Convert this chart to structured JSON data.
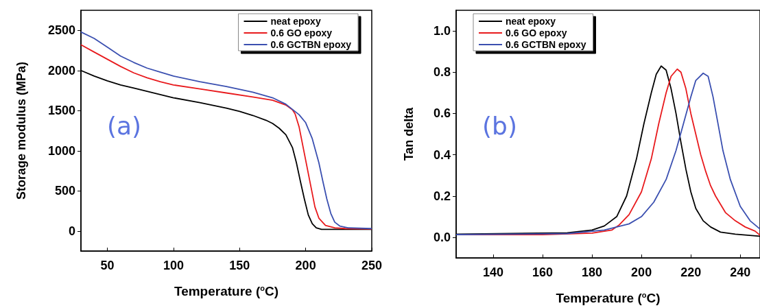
{
  "chart_data": [
    {
      "type": "line",
      "xlabel": "Temperature ($^{o}$C)",
      "ylabel": "Storage modulus (MPa)",
      "annotations": [
        "(a)"
      ],
      "xlim": [
        30,
        250
      ],
      "ylim": [
        -250,
        2750
      ],
      "xticks": [
        50,
        100,
        150,
        200,
        250
      ],
      "yticks": [
        0,
        500,
        1000,
        1500,
        2000,
        2500
      ],
      "grid": false,
      "legend": "top right",
      "marker": "none",
      "line_style": "solid",
      "series": [
        {
          "name": "neat epoxy",
          "color": "#000000",
          "x": [
            30,
            40,
            50,
            60,
            70,
            80,
            100,
            120,
            140,
            150,
            160,
            170,
            175,
            180,
            185,
            190,
            193,
            196,
            199,
            202,
            205,
            208,
            212,
            220,
            250
          ],
          "values": [
            2000,
            1930,
            1870,
            1820,
            1780,
            1740,
            1660,
            1600,
            1530,
            1490,
            1440,
            1380,
            1340,
            1280,
            1200,
            1040,
            850,
            620,
            400,
            200,
            90,
            40,
            20,
            20,
            20
          ]
        },
        {
          "name": "0.6 GO epoxy",
          "color": "#e8191c",
          "x": [
            30,
            40,
            50,
            60,
            70,
            80,
            90,
            100,
            120,
            140,
            160,
            175,
            185,
            190,
            192,
            195,
            198,
            201,
            204,
            207,
            210,
            215,
            222,
            230,
            250
          ],
          "values": [
            2320,
            2230,
            2140,
            2050,
            1970,
            1910,
            1860,
            1820,
            1770,
            1720,
            1670,
            1630,
            1570,
            1510,
            1460,
            1300,
            1050,
            800,
            550,
            300,
            160,
            70,
            40,
            30,
            25
          ]
        },
        {
          "name": "0.6 GCTBN epoxy",
          "color": "#3a4fb0",
          "x": [
            30,
            40,
            50,
            60,
            70,
            80,
            90,
            100,
            120,
            140,
            160,
            175,
            185,
            195,
            200,
            205,
            210,
            213,
            216,
            219,
            222,
            226,
            232,
            250
          ],
          "values": [
            2480,
            2400,
            2290,
            2180,
            2100,
            2030,
            1980,
            1930,
            1860,
            1800,
            1730,
            1660,
            1580,
            1450,
            1350,
            1150,
            850,
            620,
            400,
            220,
            110,
            60,
            40,
            30
          ]
        }
      ]
    },
    {
      "type": "line",
      "xlabel": "Temperature ($^{o}$C)",
      "ylabel": "Tan delta",
      "annotations": [
        "(b)"
      ],
      "xlim": [
        125,
        248
      ],
      "ylim": [
        -0.1,
        1.1
      ],
      "xticks": [
        140,
        160,
        180,
        200,
        220,
        240
      ],
      "yticks": [
        {
          "value": 0,
          "label": "0.0"
        },
        0.2,
        0.4,
        0.6,
        0.8,
        {
          "value": 1,
          "label": "1.0"
        }
      ],
      "grid": false,
      "legend": "top left",
      "marker": "none",
      "line_style": "solid",
      "series": [
        {
          "name": "neat epoxy",
          "color": "#000000",
          "x": [
            125,
            170,
            180,
            185,
            190,
            194,
            198,
            201,
            204,
            206,
            208,
            210,
            212,
            214,
            216,
            218,
            220,
            222,
            225,
            228,
            232,
            238,
            248
          ],
          "values": [
            0.015,
            0.022,
            0.035,
            0.055,
            0.1,
            0.2,
            0.38,
            0.55,
            0.7,
            0.79,
            0.83,
            0.81,
            0.72,
            0.6,
            0.46,
            0.33,
            0.22,
            0.14,
            0.08,
            0.05,
            0.025,
            0.015,
            0.005
          ]
        },
        {
          "name": "0.6 GO epoxy",
          "color": "#e8191c",
          "x": [
            125,
            160,
            180,
            188,
            191,
            195,
            200,
            204,
            207,
            210,
            212,
            214.5,
            216,
            218,
            220,
            222,
            224,
            226,
            228,
            230,
            234,
            238,
            242,
            246,
            248
          ],
          "values": [
            0.013,
            0.013,
            0.02,
            0.035,
            0.06,
            0.11,
            0.22,
            0.38,
            0.55,
            0.7,
            0.78,
            0.815,
            0.8,
            0.72,
            0.6,
            0.5,
            0.4,
            0.32,
            0.25,
            0.2,
            0.12,
            0.08,
            0.05,
            0.03,
            0.01
          ]
        },
        {
          "name": "0.6 GCTBN epoxy",
          "color": "#3a4fb0",
          "x": [
            125,
            170,
            185,
            195,
            200,
            205,
            210,
            214,
            217,
            220,
            222,
            225,
            227,
            229,
            231,
            233,
            236,
            240,
            244,
            248
          ],
          "values": [
            0.013,
            0.018,
            0.035,
            0.065,
            0.1,
            0.17,
            0.28,
            0.42,
            0.55,
            0.68,
            0.76,
            0.795,
            0.78,
            0.68,
            0.55,
            0.42,
            0.28,
            0.15,
            0.08,
            0.04
          ]
        }
      ]
    }
  ]
}
